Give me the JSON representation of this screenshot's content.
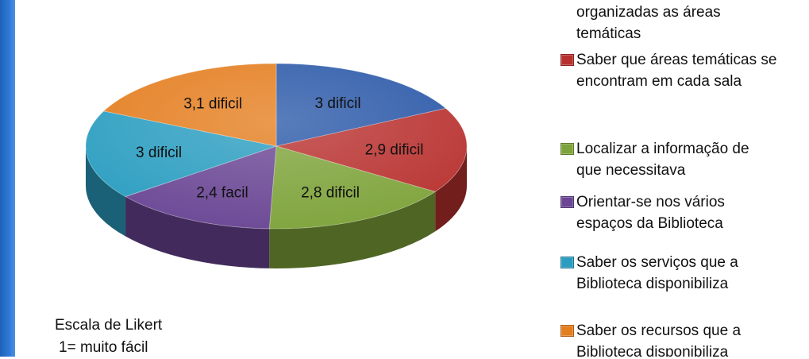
{
  "chart_data": {
    "type": "pie",
    "slices": [
      {
        "label": "3 dificil",
        "value": 3.0,
        "color": "#2a58a8"
      },
      {
        "label": "2,9 dificil",
        "value": 2.9,
        "color": "#b8312f"
      },
      {
        "label": "2,8 dificil",
        "value": 2.8,
        "color": "#7ea33a"
      },
      {
        "label": "2,4 facil",
        "value": 2.4,
        "color": "#6a4694"
      },
      {
        "label": "3 dificil",
        "value": 3.0,
        "color": "#2a9dc0"
      },
      {
        "label": "3,1 dificil",
        "value": 3.1,
        "color": "#e47d1e"
      }
    ],
    "legend": [
      {
        "lines": [
          "organizadas as áreas",
          "temáticas"
        ],
        "color": null
      },
      {
        "lines": [
          "Saber que áreas temáticas se",
          "encontram em cada sala"
        ],
        "color": "#b8312f"
      },
      {
        "lines": [
          "Localizar a informação de",
          "que necessitava"
        ],
        "color": "#7ea33a"
      },
      {
        "lines": [
          "Orientar-se nos vários",
          "espaços da Biblioteca"
        ],
        "color": "#6a4694"
      },
      {
        "lines": [
          "Saber os serviços que a",
          "Biblioteca disponibiliza"
        ],
        "color": "#2a9dc0"
      },
      {
        "lines": [
          "Saber os recursos que a",
          "Biblioteca disponibiliza"
        ],
        "color": "#e47d1e"
      }
    ],
    "legend_placement": "right",
    "three_d": true
  },
  "likert_note": {
    "line1": "Escala de Likert",
    "line2": "1= muito  fácil"
  }
}
